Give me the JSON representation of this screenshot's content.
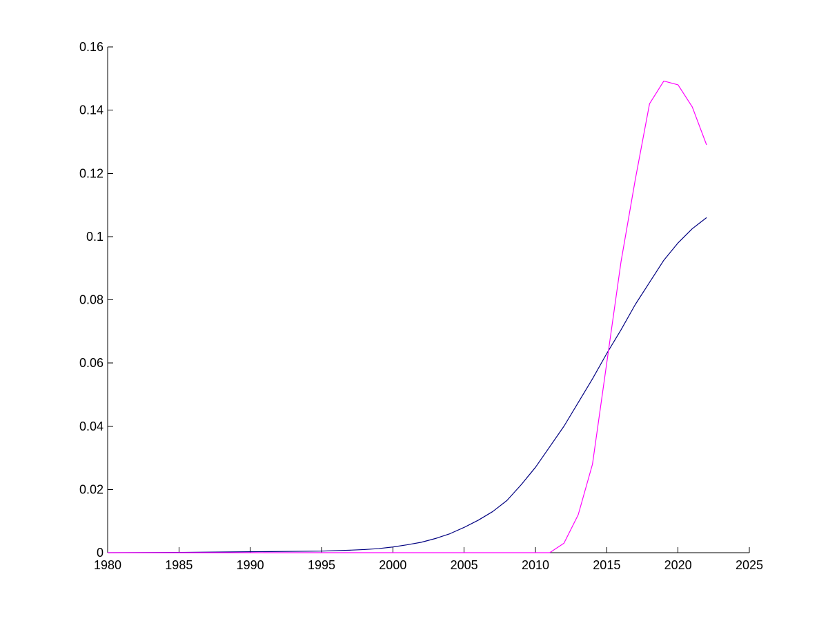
{
  "chart_data": {
    "type": "line",
    "title": "",
    "xlabel": "",
    "ylabel": "",
    "xlim": [
      1980,
      2025
    ],
    "ylim": [
      0,
      0.16
    ],
    "grid": false,
    "legend": "none",
    "x_ticks": [
      1980,
      1985,
      1990,
      1995,
      2000,
      2005,
      2010,
      2015,
      2020,
      2025
    ],
    "x_tick_labels": [
      "1980",
      "1985",
      "1990",
      "1995",
      "2000",
      "2005",
      "2010",
      "2015",
      "2020",
      "2025"
    ],
    "y_ticks": [
      0,
      0.02,
      0.04,
      0.06,
      0.08,
      0.1,
      0.12,
      0.14,
      0.16
    ],
    "y_tick_labels": [
      "0",
      "0.02",
      "0.04",
      "0.06",
      "0.08",
      "0.1",
      "0.12",
      "0.14",
      "0.16"
    ],
    "series": [
      {
        "color": "#000080",
        "x": [
          1980,
          1985,
          1990,
          1995,
          1997,
          1998,
          1999,
          2000,
          2001,
          2002,
          2003,
          2004,
          2005,
          2006,
          2007,
          2008,
          2009,
          2010,
          2011,
          2012,
          2013,
          2014,
          2015,
          2016,
          2017,
          2018,
          2019,
          2020,
          2021,
          2022
        ],
        "y": [
          0.0,
          0.0001,
          0.0003,
          0.0005,
          0.0008,
          0.001,
          0.0013,
          0.0018,
          0.0025,
          0.0033,
          0.0045,
          0.006,
          0.008,
          0.0103,
          0.013,
          0.0165,
          0.0215,
          0.027,
          0.0335,
          0.04,
          0.0475,
          0.055,
          0.063,
          0.0705,
          0.0785,
          0.0855,
          0.0925,
          0.098,
          0.1025,
          0.106
        ]
      },
      {
        "color": "#ff00ff",
        "x": [
          1980,
          1990,
          2000,
          2005,
          2010,
          2011,
          2012,
          2013,
          2014,
          2015,
          2016,
          2017,
          2018,
          2019,
          2020,
          2021,
          2022
        ],
        "y": [
          0.0,
          0.0,
          0.0,
          0.0,
          0.0,
          0.0,
          0.003,
          0.012,
          0.028,
          0.06,
          0.092,
          0.118,
          0.142,
          0.1492,
          0.148,
          0.141,
          0.129
        ]
      }
    ]
  }
}
